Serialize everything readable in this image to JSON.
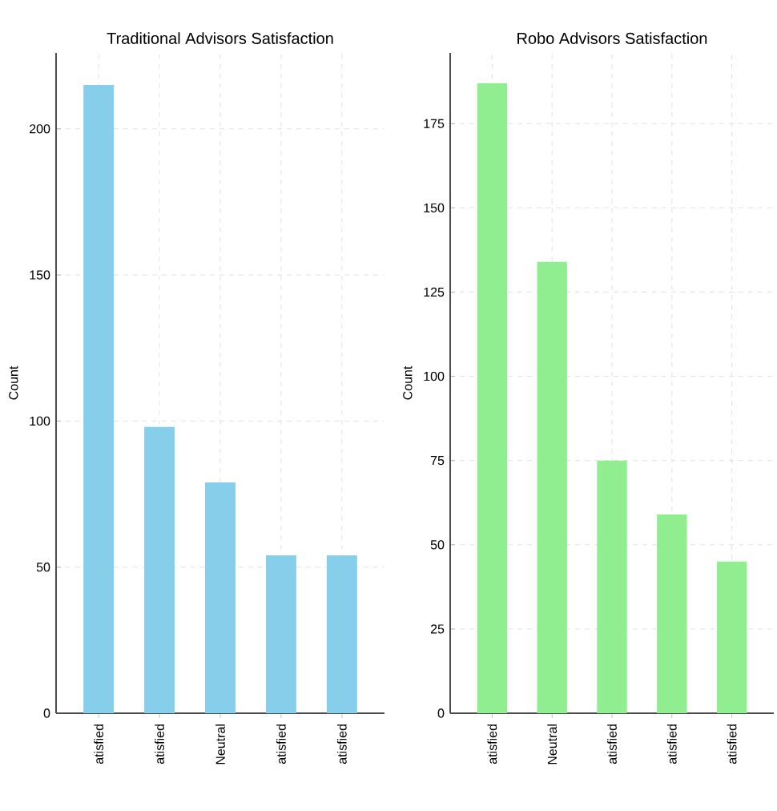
{
  "chart_data": [
    {
      "type": "bar",
      "title": "Traditional Advisors Satisfaction",
      "ylabel": "Count",
      "categories": [
        "atisfied",
        "atisfied",
        "Neutral",
        "atisfied",
        "atisfied"
      ],
      "values": [
        215,
        98,
        79,
        54,
        54
      ],
      "color": "#87ceeb",
      "ylim": [
        0,
        226
      ],
      "yticks": [
        0,
        50,
        100,
        150,
        200
      ],
      "grid": true
    },
    {
      "type": "bar",
      "title": "Robo Advisors Satisfaction",
      "ylabel": "Count",
      "categories": [
        "atisfied",
        "Neutral",
        "atisfied",
        "atisfied",
        "atisfied"
      ],
      "values": [
        187,
        134,
        75,
        59,
        45
      ],
      "color": "#90ee90",
      "ylim": [
        0,
        196
      ],
      "yticks": [
        0,
        25,
        50,
        75,
        100,
        125,
        150,
        175
      ],
      "grid": true
    }
  ]
}
